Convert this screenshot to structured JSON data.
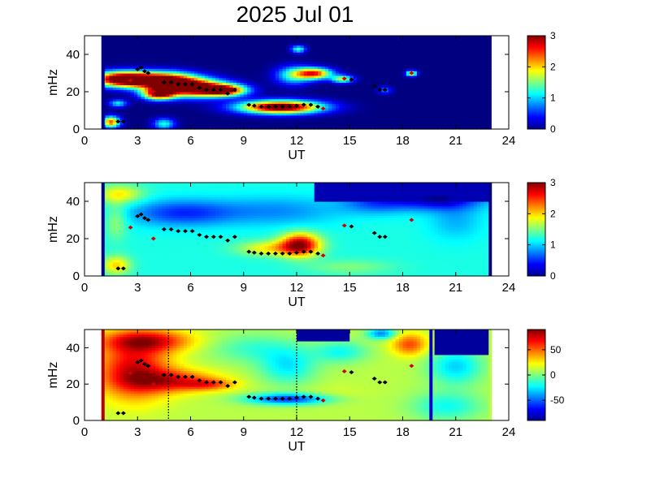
{
  "figure": {
    "title": "2025 Jul 01"
  },
  "chart_data": [
    {
      "type": "heatmap",
      "panel": "top",
      "xlabel": "UT",
      "ylabel": "mHz",
      "xlim": [
        0,
        24
      ],
      "ylim": [
        0,
        50
      ],
      "xticks": [
        "0",
        "3",
        "6",
        "9",
        "12",
        "15",
        "18",
        "21",
        "24"
      ],
      "yticks": [
        "0",
        "20",
        "40"
      ],
      "data_x_range": [
        1,
        23
      ],
      "colorbar": {
        "range": [
          0,
          3
        ],
        "ticks": [
          "0",
          "1",
          "2",
          "3"
        ]
      },
      "background_value": 0,
      "blobs": [
        {
          "x": 2.1,
          "y": 27,
          "rx": 1.6,
          "ry": 4,
          "v": 3.4
        },
        {
          "x": 4.5,
          "y": 26,
          "rx": 1.8,
          "ry": 4.5,
          "v": 3.4
        },
        {
          "x": 6.3,
          "y": 22,
          "rx": 1.8,
          "ry": 4.5,
          "v": 3.2
        },
        {
          "x": 8.0,
          "y": 21,
          "rx": 1.2,
          "ry": 3,
          "v": 2.4
        },
        {
          "x": 4.2,
          "y": 19,
          "rx": 0.9,
          "ry": 3,
          "v": 2.8
        },
        {
          "x": 11.1,
          "y": 12,
          "rx": 2.3,
          "ry": 3.5,
          "v": 3.4
        },
        {
          "x": 13.0,
          "y": 30,
          "rx": 1.0,
          "ry": 3,
          "v": 2.5
        },
        {
          "x": 14.6,
          "y": 27,
          "rx": 0.6,
          "ry": 2,
          "v": 1.7
        },
        {
          "x": 11.8,
          "y": 29,
          "rx": 1.0,
          "ry": 5,
          "v": 1.2
        },
        {
          "x": 12.1,
          "y": 43,
          "rx": 0.4,
          "ry": 2,
          "v": 1.3
        },
        {
          "x": 1.5,
          "y": 4,
          "rx": 0.5,
          "ry": 3,
          "v": 2.4
        },
        {
          "x": 4.5,
          "y": 3,
          "rx": 0.6,
          "ry": 3,
          "v": 1.2
        },
        {
          "x": 1.9,
          "y": 14,
          "rx": 0.5,
          "ry": 2,
          "v": 1.1
        },
        {
          "x": 17.0,
          "y": 21,
          "rx": 0.4,
          "ry": 2,
          "v": 0.7
        },
        {
          "x": 18.5,
          "y": 30,
          "rx": 0.3,
          "ry": 1.5,
          "v": 2.0
        }
      ]
    },
    {
      "type": "heatmap",
      "panel": "middle",
      "xlabel": "UT",
      "ylabel": "mHz",
      "xlim": [
        0,
        24
      ],
      "ylim": [
        0,
        50
      ],
      "xticks": [
        "0",
        "3",
        "6",
        "9",
        "12",
        "15",
        "18",
        "21",
        "24"
      ],
      "yticks": [
        "0",
        "20",
        "40"
      ],
      "data_x_range": [
        1,
        23
      ],
      "colorbar": {
        "range": [
          0,
          3
        ],
        "ticks": [
          "0",
          "1",
          "2",
          "3"
        ]
      },
      "background_value": 1.2,
      "blobs": [
        {
          "x": 12.2,
          "y": 17,
          "rx": 1.1,
          "ry": 6,
          "v": 2.9
        },
        {
          "x": 10.5,
          "y": 15,
          "rx": 1.8,
          "ry": 4,
          "v": 1.9
        },
        {
          "x": 1.8,
          "y": 6,
          "rx": 0.8,
          "ry": 5,
          "v": 2.0
        },
        {
          "x": 2.0,
          "y": 44,
          "rx": 1.3,
          "ry": 5,
          "v": 1.9
        },
        {
          "x": 1.8,
          "y": 30,
          "rx": 0.6,
          "ry": 10,
          "v": 1.6
        },
        {
          "x": 5.5,
          "y": 34,
          "rx": 3.0,
          "ry": 7,
          "v": 0.5
        },
        {
          "x": 11.0,
          "y": 35,
          "rx": 3.5,
          "ry": 8,
          "v": 0.8
        },
        {
          "x": 16.5,
          "y": 40,
          "rx": 2.0,
          "ry": 6,
          "v": 0.6
        },
        {
          "x": 21.0,
          "y": 30,
          "rx": 1.5,
          "ry": 10,
          "v": 0.9
        },
        {
          "x": 20.0,
          "y": 42,
          "rx": 2.5,
          "ry": 6,
          "v": 0.1
        },
        {
          "x": 15.0,
          "y": 5,
          "rx": 2.5,
          "ry": 4,
          "v": 1.5
        }
      ]
    },
    {
      "type": "heatmap",
      "panel": "bottom",
      "xlabel": "UT",
      "ylabel": "mHz",
      "xlim": [
        0,
        24
      ],
      "ylim": [
        0,
        50
      ],
      "xticks": [
        "0",
        "3",
        "6",
        "9",
        "12",
        "15",
        "18",
        "21",
        "24"
      ],
      "yticks": [
        "0",
        "20",
        "40"
      ],
      "data_x_range": [
        1,
        23
      ],
      "colorbar": {
        "range": [
          -90,
          90
        ],
        "ticks": [
          "50",
          "0",
          "-50"
        ]
      },
      "background_value": 10,
      "blobs": [
        {
          "x": 2.8,
          "y": 28,
          "rx": 2.0,
          "ry": 16,
          "v": 75
        },
        {
          "x": 5.0,
          "y": 22,
          "rx": 2.5,
          "ry": 6,
          "v": 60
        },
        {
          "x": 7.0,
          "y": 20,
          "rx": 1.5,
          "ry": 3,
          "v": 45
        },
        {
          "x": 3.5,
          "y": 44,
          "rx": 2.5,
          "ry": 6,
          "v": 70
        },
        {
          "x": 18.4,
          "y": 42,
          "rx": 1.0,
          "ry": 6,
          "v": 55
        },
        {
          "x": 11.5,
          "y": 12,
          "rx": 2.3,
          "ry": 3,
          "v": -60
        },
        {
          "x": 11.5,
          "y": 30,
          "rx": 1.6,
          "ry": 10,
          "v": -25
        },
        {
          "x": 9.5,
          "y": 40,
          "rx": 2.5,
          "ry": 8,
          "v": -12
        },
        {
          "x": 14.5,
          "y": 38,
          "rx": 1.5,
          "ry": 6,
          "v": -20
        },
        {
          "x": 21.0,
          "y": 30,
          "rx": 1.5,
          "ry": 10,
          "v": -30
        },
        {
          "x": 20.5,
          "y": 8,
          "rx": 2.0,
          "ry": 8,
          "v": -20
        },
        {
          "x": 16.8,
          "y": 48,
          "rx": 0.8,
          "ry": 3,
          "v": -45
        },
        {
          "x": 14.0,
          "y": 15,
          "rx": 2.0,
          "ry": 5,
          "v": 15
        }
      ],
      "markers": [
        {
          "x": 4.75,
          "style": "dotted"
        },
        {
          "x": 12.0,
          "style": "dotted"
        },
        {
          "x": 19.6,
          "style": "solid"
        }
      ]
    }
  ],
  "peaks": [
    [
      1.9,
      4
    ],
    [
      2.2,
      4
    ],
    [
      2.6,
      26
    ],
    [
      3.0,
      32
    ],
    [
      3.2,
      33
    ],
    [
      3.4,
      31
    ],
    [
      3.6,
      30
    ],
    [
      3.9,
      20
    ],
    [
      4.5,
      25
    ],
    [
      4.9,
      25
    ],
    [
      5.3,
      24
    ],
    [
      5.7,
      24
    ],
    [
      6.1,
      24
    ],
    [
      6.5,
      22
    ],
    [
      6.9,
      21
    ],
    [
      7.3,
      21
    ],
    [
      7.7,
      21
    ],
    [
      8.1,
      19
    ],
    [
      8.5,
      21
    ],
    [
      9.3,
      13
    ],
    [
      9.6,
      12.5
    ],
    [
      10.0,
      12
    ],
    [
      10.4,
      12
    ],
    [
      10.8,
      12
    ],
    [
      11.2,
      12
    ],
    [
      11.6,
      12
    ],
    [
      12.0,
      12.5
    ],
    [
      12.4,
      13
    ],
    [
      12.8,
      13
    ],
    [
      13.2,
      12
    ],
    [
      13.5,
      11
    ],
    [
      14.7,
      27
    ],
    [
      15.1,
      26.5
    ],
    [
      16.4,
      23
    ],
    [
      16.7,
      21
    ],
    [
      17.0,
      21
    ],
    [
      18.5,
      30
    ]
  ]
}
